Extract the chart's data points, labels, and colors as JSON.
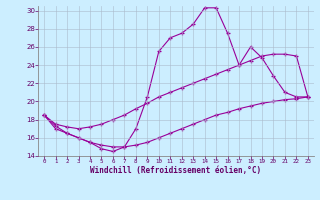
{
  "title": "",
  "xlabel": "Windchill (Refroidissement éolien,°C)",
  "ylabel": "",
  "bg_color": "#cceeff",
  "grid_color": "#aabbcc",
  "line_color": "#990099",
  "xlim": [
    -0.5,
    23.5
  ],
  "ylim": [
    14,
    30.5
  ],
  "yticks": [
    14,
    16,
    18,
    20,
    22,
    24,
    26,
    28,
    30
  ],
  "xticks": [
    0,
    1,
    2,
    3,
    4,
    5,
    6,
    7,
    8,
    9,
    10,
    11,
    12,
    13,
    14,
    15,
    16,
    17,
    18,
    19,
    20,
    21,
    22,
    23
  ],
  "line1_x": [
    0,
    1,
    2,
    3,
    4,
    5,
    6,
    7,
    8,
    9,
    10,
    11,
    12,
    13,
    14,
    15,
    16,
    17,
    18,
    19,
    20,
    21,
    22,
    23
  ],
  "line1_y": [
    18.5,
    17.3,
    16.5,
    16.0,
    15.5,
    14.8,
    14.5,
    15.0,
    17.0,
    20.5,
    25.5,
    27.0,
    27.5,
    28.5,
    30.3,
    30.3,
    27.5,
    24.0,
    26.0,
    24.8,
    22.8,
    21.0,
    20.5,
    20.5
  ],
  "line2_x": [
    0,
    1,
    2,
    3,
    4,
    5,
    6,
    7,
    8,
    9,
    10,
    11,
    12,
    13,
    14,
    15,
    16,
    17,
    18,
    19,
    20,
    21,
    22,
    23
  ],
  "line2_y": [
    18.5,
    17.5,
    17.2,
    17.0,
    17.2,
    17.5,
    18.0,
    18.5,
    19.2,
    19.8,
    20.5,
    21.0,
    21.5,
    22.0,
    22.5,
    23.0,
    23.5,
    24.0,
    24.5,
    25.0,
    25.2,
    25.2,
    25.0,
    20.5
  ],
  "line3_x": [
    0,
    1,
    2,
    3,
    4,
    5,
    6,
    7,
    8,
    9,
    10,
    11,
    12,
    13,
    14,
    15,
    16,
    17,
    18,
    19,
    20,
    21,
    22,
    23
  ],
  "line3_y": [
    18.5,
    17.0,
    16.5,
    16.0,
    15.5,
    15.2,
    15.0,
    15.0,
    15.2,
    15.5,
    16.0,
    16.5,
    17.0,
    17.5,
    18.0,
    18.5,
    18.8,
    19.2,
    19.5,
    19.8,
    20.0,
    20.2,
    20.3,
    20.5
  ]
}
